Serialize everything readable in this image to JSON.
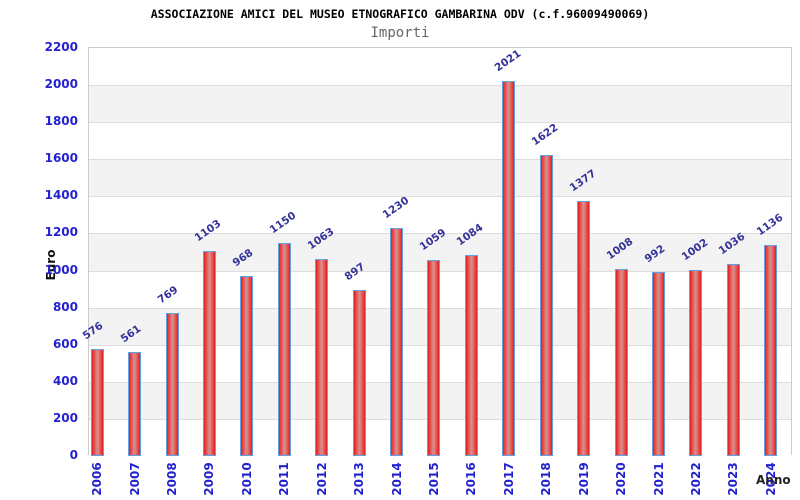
{
  "page": {
    "background": "#ffffff"
  },
  "chart_data": {
    "type": "bar",
    "title": "ASSOCIAZIONE AMICI DEL MUSEO ETNOGRAFICO GAMBARINA ODV (c.f.96009490069)",
    "subtitle": "Importi",
    "xlabel": "Anno",
    "ylabel": "Euro",
    "categories": [
      "2006",
      "2007",
      "2008",
      "2009",
      "2010",
      "2011",
      "2012",
      "2013",
      "2014",
      "2015",
      "2016",
      "2017",
      "2018",
      "2019",
      "2020",
      "2021",
      "2022",
      "2023",
      "2024"
    ],
    "values": [
      576,
      561,
      769,
      1103,
      968,
      1150,
      1063,
      897,
      1230,
      1059,
      1084,
      2021,
      1622,
      1377,
      1008,
      992,
      1002,
      1036,
      1136
    ],
    "ylim": [
      0,
      2200
    ],
    "ytick_step": 200,
    "yticks": [
      0,
      200,
      400,
      600,
      800,
      1000,
      1200,
      1400,
      1600,
      1800,
      2000,
      2200
    ],
    "grid": "horizontal lines with alternating gray/white bands",
    "legend": "none",
    "value_labels": "above bars, rotated",
    "colors": {
      "bar_fill": "#ee3b3b",
      "bar_fill_mid": "#cf9595",
      "bar_border": "#62a1e3",
      "axis_tick_label": "#2222cf",
      "value_label": "#333399",
      "band_gray": "#f3f3f3",
      "grid_line": "#dddddd",
      "plot_border": "#cccccc",
      "title": "#000000",
      "subtitle": "#666666"
    }
  }
}
